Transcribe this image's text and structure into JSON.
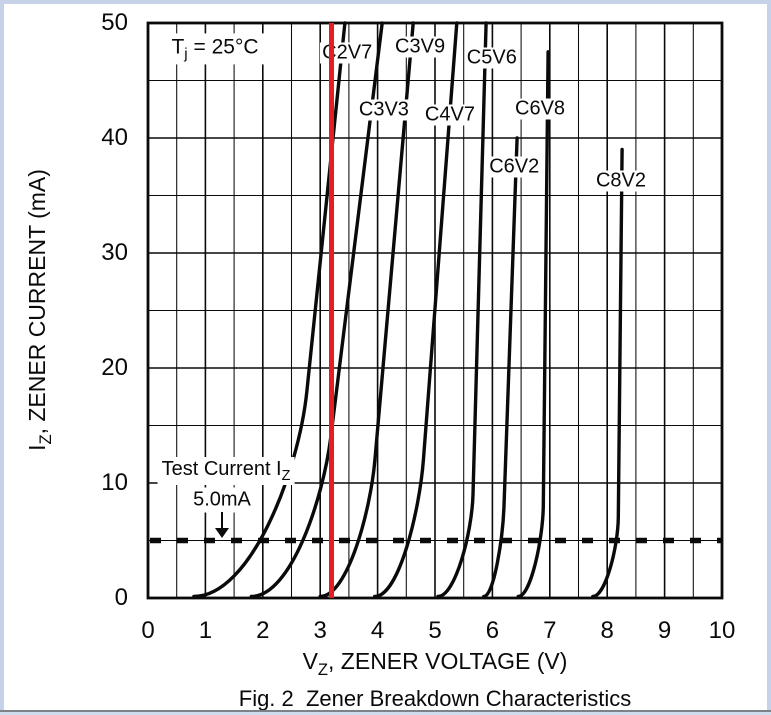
{
  "figure": {
    "caption": "Fig. 2  Zener Breakdown Characteristics"
  },
  "axes": {
    "x": {
      "title_pre": "V",
      "title_sub": "Z",
      "title_post": ", ZENER VOLTAGE (V)",
      "ticks": [
        "0",
        "1",
        "2",
        "3",
        "4",
        "5",
        "6",
        "7",
        "8",
        "9",
        "10"
      ],
      "min": 0,
      "max": 10,
      "minor_step": 0.5
    },
    "y": {
      "title_pre": "I",
      "title_sub": "Z",
      "title_post": ", ZENER CURRENT (mA)",
      "ticks": [
        "0",
        "10",
        "20",
        "30",
        "40",
        "50"
      ],
      "min": 0,
      "max": 50,
      "minor_step": 5
    }
  },
  "annotations": {
    "temperature": {
      "pre": "T",
      "sub": "j",
      "post": " = 25°C"
    },
    "test_current": {
      "line1_pre": "Test Current I",
      "line1_sub": "Z",
      "line2": "5.0mA"
    }
  },
  "marker": {
    "red_line_v": 3.2,
    "color": "#e51e25"
  },
  "chart_data": {
    "type": "line",
    "title": "Fig. 2  Zener Breakdown Characteristics",
    "xlabel": "VZ, ZENER VOLTAGE (V)",
    "ylabel": "IZ, ZENER CURRENT (mA)",
    "xlim": [
      0,
      10
    ],
    "ylim": [
      0,
      50
    ],
    "grid": {
      "x_minor": 0.5,
      "y_minor": 5,
      "on": true
    },
    "condition": "Tj = 25°C",
    "test_current_mA": 5.0,
    "red_marker_v": 3.2,
    "series": [
      {
        "name": "C2V7",
        "v_liftoff": 0.8,
        "v_at_5mA": 2.5,
        "v_at_top": 3.43,
        "i_top": 50,
        "knee_i": 18,
        "label_v": 3.47,
        "label_i": 47.4,
        "points": [
          [
            0.8,
            0
          ],
          [
            1.9,
            2
          ],
          [
            2.5,
            5
          ],
          [
            2.9,
            15
          ],
          [
            3.2,
            30
          ],
          [
            3.43,
            50
          ]
        ]
      },
      {
        "name": "C3V3",
        "v_liftoff": 1.8,
        "v_at_5mA": 2.96,
        "v_at_top": 4.08,
        "i_top": 50,
        "knee_i": 14,
        "label_v": 4.11,
        "label_i": 42.4,
        "points": [
          [
            1.8,
            0
          ],
          [
            2.6,
            2
          ],
          [
            2.96,
            5
          ],
          [
            3.4,
            18
          ],
          [
            3.8,
            36
          ],
          [
            4.08,
            50
          ]
        ]
      },
      {
        "name": "C3V9",
        "v_liftoff": 3.0,
        "v_at_5mA": 3.83,
        "v_at_top": 4.62,
        "i_top": 50,
        "knee_i": 12,
        "label_v": 4.74,
        "label_i": 47.9,
        "points": [
          [
            3.0,
            0
          ],
          [
            3.5,
            2
          ],
          [
            3.83,
            5
          ],
          [
            4.2,
            25
          ],
          [
            4.62,
            50
          ]
        ]
      },
      {
        "name": "C4V7",
        "v_liftoff": 3.95,
        "v_at_5mA": 4.69,
        "v_at_top": 5.38,
        "i_top": 50,
        "knee_i": 12,
        "label_v": 5.26,
        "label_i": 42.0,
        "points": [
          [
            3.95,
            0
          ],
          [
            4.4,
            2
          ],
          [
            4.69,
            5
          ],
          [
            5.1,
            30
          ],
          [
            5.38,
            50
          ]
        ]
      },
      {
        "name": "C5V6",
        "v_liftoff": 5.05,
        "v_at_5mA": 5.64,
        "v_at_top": 5.89,
        "i_top": 50,
        "knee_i": 9,
        "label_v": 5.99,
        "label_i": 47.0,
        "points": [
          [
            5.05,
            0
          ],
          [
            5.45,
            2
          ],
          [
            5.64,
            5
          ],
          [
            5.8,
            28
          ],
          [
            5.89,
            50
          ]
        ]
      },
      {
        "name": "C6V2",
        "v_liftoff": 5.85,
        "v_at_5mA": 6.18,
        "v_at_top": 6.43,
        "i_top": 40,
        "knee_i": 8,
        "label_v": 6.38,
        "label_i": 37.5,
        "points": [
          [
            5.85,
            0
          ],
          [
            6.05,
            2
          ],
          [
            6.18,
            5
          ],
          [
            6.35,
            22
          ],
          [
            6.43,
            40
          ]
        ]
      },
      {
        "name": "C6V8",
        "v_liftoff": 6.45,
        "v_at_5mA": 6.88,
        "v_at_top": 6.97,
        "i_top": 47.5,
        "knee_i": 8,
        "label_v": 6.83,
        "label_i": 42.5,
        "points": [
          [
            6.45,
            0
          ],
          [
            6.75,
            2
          ],
          [
            6.88,
            5
          ],
          [
            6.93,
            25
          ],
          [
            6.97,
            47.5
          ]
        ]
      },
      {
        "name": "C8V2",
        "v_liftoff": 7.75,
        "v_at_5mA": 8.19,
        "v_at_top": 8.26,
        "i_top": 39,
        "knee_i": 7,
        "label_v": 8.24,
        "label_i": 36.3,
        "points": [
          [
            7.75,
            0
          ],
          [
            8.05,
            2
          ],
          [
            8.19,
            5
          ],
          [
            8.23,
            20
          ],
          [
            8.26,
            39
          ]
        ]
      }
    ],
    "legend": "labels inline on curves"
  }
}
